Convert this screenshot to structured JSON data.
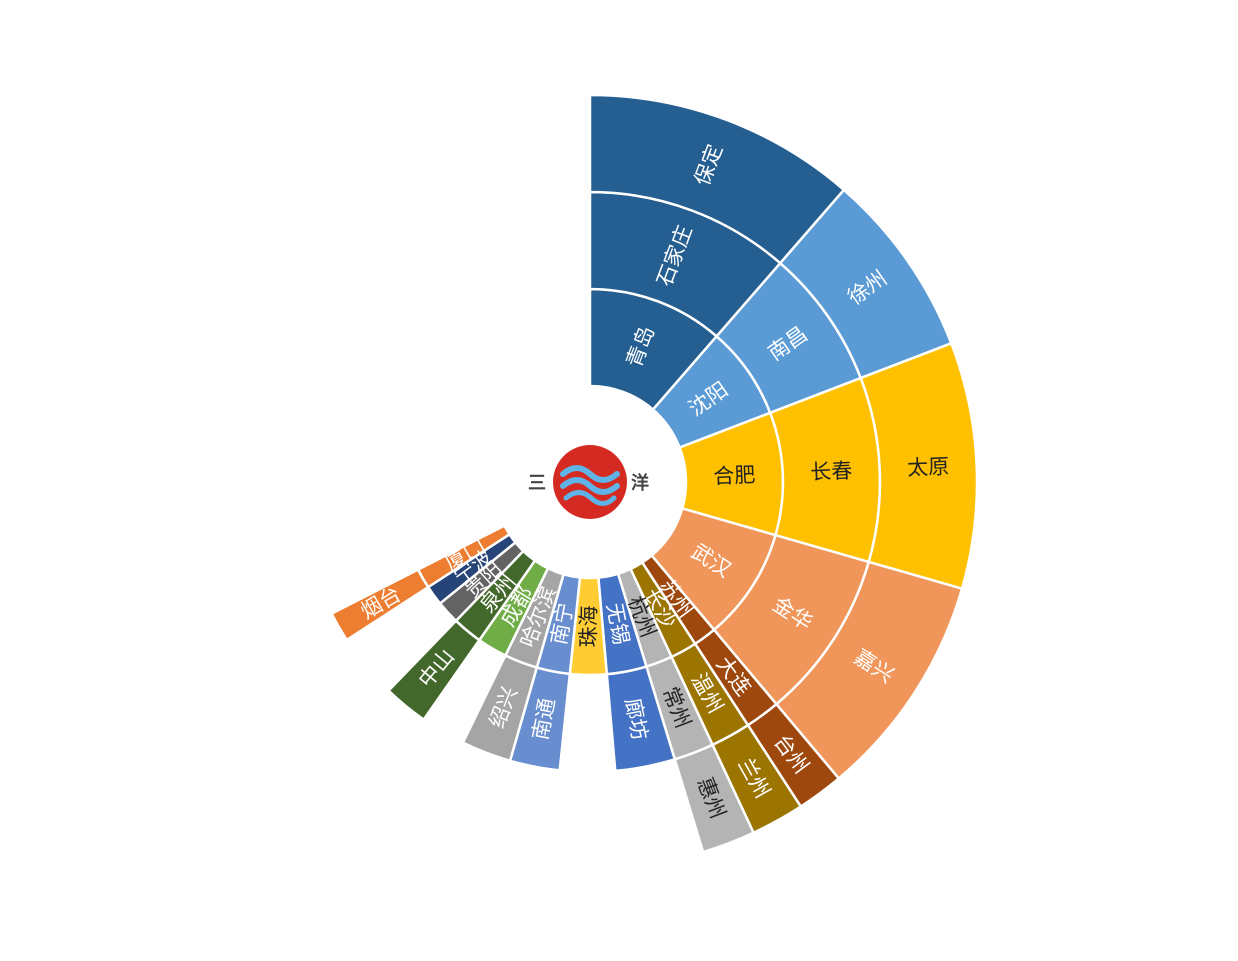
{
  "chart_data": {
    "type": "sunburst",
    "center_logo": {
      "left_char": "三",
      "right_char": "洋",
      "circle_color": "#D42A22",
      "wave_color": "#5FB3E6"
    },
    "rings": 3,
    "segments": [
      {
        "start": 0,
        "end": 41,
        "color": "#255E91",
        "text_color": "#ffffff",
        "labels": [
          "青岛",
          "石家庄",
          "保定"
        ]
      },
      {
        "start": 41,
        "end": 69,
        "color": "#5B9BD5",
        "text_color": "#ffffff",
        "labels": [
          "沈阳",
          "南昌",
          "徐州"
        ]
      },
      {
        "start": 69,
        "end": 106,
        "color": "#FFC000",
        "text_color": "#222222",
        "labels": [
          "合肥",
          "长春",
          "太原"
        ]
      },
      {
        "start": 106,
        "end": 140,
        "color": "#F0965A",
        "text_color": "#ffffff",
        "labels": [
          "武汉",
          "金华",
          "嘉兴"
        ]
      },
      {
        "start": 140,
        "end": 147,
        "color": "#9E480E",
        "text_color": "#ffffff",
        "labels": [
          "苏州",
          "大连",
          "台州"
        ]
      },
      {
        "start": 147,
        "end": 155,
        "color": "#9C7400",
        "text_color": "#ffffff",
        "labels": [
          "长沙",
          "温州",
          "兰州"
        ]
      },
      {
        "start": 155,
        "end": 163,
        "color": "#B4B4B4",
        "text_color": "#222222",
        "labels": [
          "杭州",
          "常州",
          "惠州"
        ]
      },
      {
        "start": 163,
        "end": 175,
        "color": "#4472C4",
        "text_color": "#ffffff",
        "labels": [
          "无锡",
          "廊坊",
          null
        ]
      },
      {
        "start": 175,
        "end": 186,
        "color": "#FFCD33",
        "text_color": "#222222",
        "labels": [
          "珠海",
          null,
          null
        ]
      },
      {
        "start": 186,
        "end": 196,
        "color": "#698ED0",
        "text_color": "#ffffff",
        "labels": [
          "南宁",
          "南通",
          null
        ]
      },
      {
        "start": 196,
        "end": 206,
        "color": "#A5A5A5",
        "text_color": "#ffffff",
        "labels": [
          "哈尔滨",
          "绍兴",
          null
        ]
      },
      {
        "start": 206,
        "end": 215,
        "color": "#70AD47",
        "text_color": "#ffffff",
        "labels": [
          "成都",
          null,
          null
        ]
      },
      {
        "start": 215,
        "end": 224,
        "color": "#43682B",
        "text_color": "#ffffff",
        "labels": [
          "泉州",
          "中山",
          null
        ]
      },
      {
        "start": 224,
        "end": 231,
        "color": "#636363",
        "text_color": "#ffffff",
        "labels": [
          "贵阳",
          null,
          null
        ]
      },
      {
        "start": 231,
        "end": 237,
        "color": "#264478",
        "text_color": "#ffffff",
        "labels": [
          "宁波",
          null,
          null
        ]
      },
      {
        "start": 237,
        "end": 243,
        "color": "#ED7D31",
        "text_color": "#ffffff",
        "labels": [
          "厦门",
          "烟台",
          null
        ]
      }
    ]
  }
}
